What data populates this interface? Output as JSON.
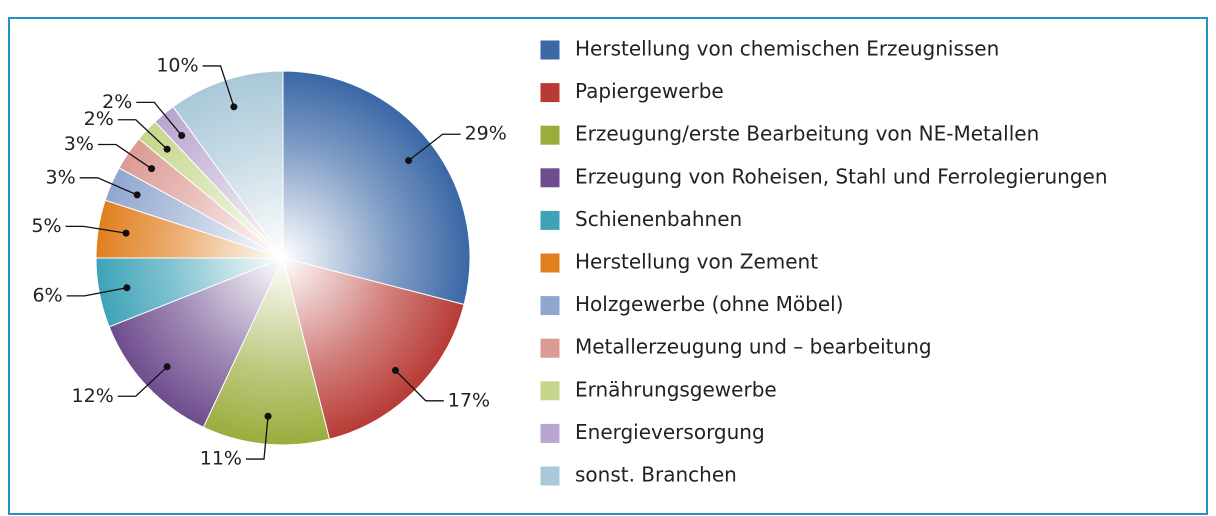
{
  "chart_data": {
    "type": "pie",
    "categories": [
      "Herstellung von chemischen Erzeugnissen",
      "Papiergewerbe",
      "Erzeugung/erste Bearbeitung von NE-Metallen",
      "Erzeugung von Roheisen, Stahl und Ferrolegierungen",
      "Schienenbahnen",
      "Herstellung von Zement",
      "Holzgewerbe (ohne Möbel)",
      "Metallerzeugung und – bearbeitung",
      "Ernährungsgewerbe",
      "Energieversorgung",
      "sonst. Branchen"
    ],
    "values": [
      29,
      17,
      11,
      12,
      6,
      5,
      3,
      3,
      2,
      2,
      10
    ],
    "value_labels": [
      "29%",
      "17%",
      "11%",
      "12%",
      "6%",
      "5%",
      "3%",
      "3%",
      "2%",
      "2%",
      "10%"
    ],
    "colors": [
      "#3a67a6",
      "#b83a35",
      "#9aad3c",
      "#6e4c8e",
      "#3ea3b8",
      "#e07f1e",
      "#8fa6cf",
      "#dc9a94",
      "#c5d68a",
      "#b9a5cf",
      "#a9c8d8"
    ]
  }
}
